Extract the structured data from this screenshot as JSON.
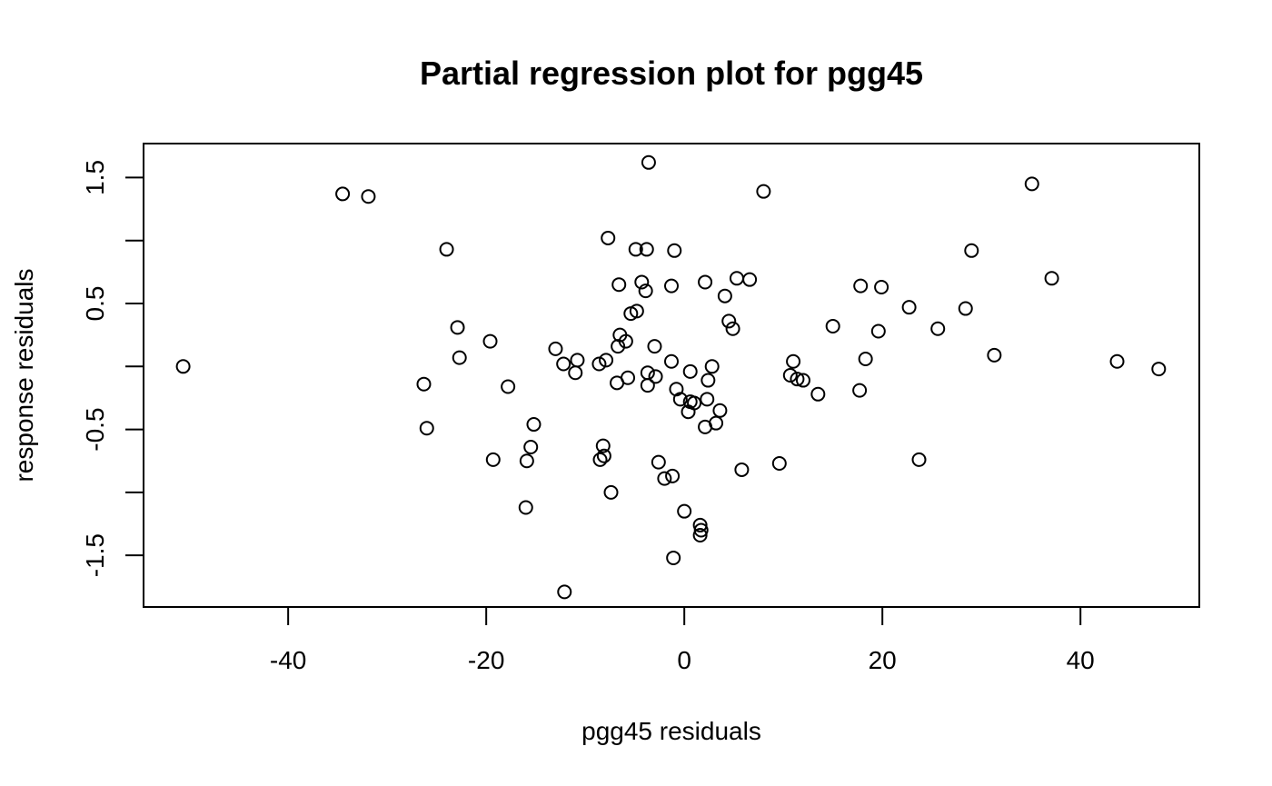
{
  "chart_data": {
    "type": "scatter",
    "title": "Partial regression plot for pgg45",
    "xlabel": "pgg45 residuals",
    "ylabel": "response residuals",
    "xlim": [
      -54.6,
      52.0
    ],
    "ylim": [
      -1.91,
      1.77
    ],
    "xticks": [
      -40,
      -20,
      0,
      20,
      40
    ],
    "xtick_labels": [
      "-40",
      "-20",
      "0",
      "20",
      "40"
    ],
    "yticks": [
      -1.5,
      -1.0,
      -0.5,
      0.0,
      0.5,
      1.0,
      1.5
    ],
    "ytick_labels": [
      "-1.5",
      "",
      "-0.5",
      "",
      "0.5",
      "",
      "1.5"
    ],
    "grid": false,
    "legend": "none",
    "points": [
      {
        "x": -50.6,
        "y": 0.0
      },
      {
        "x": -34.5,
        "y": 1.37
      },
      {
        "x": -31.9,
        "y": 1.35
      },
      {
        "x": -24.0,
        "y": 0.93
      },
      {
        "x": -26.3,
        "y": -0.14
      },
      {
        "x": -26.0,
        "y": -0.49
      },
      {
        "x": -22.9,
        "y": 0.31
      },
      {
        "x": -22.7,
        "y": 0.07
      },
      {
        "x": -19.6,
        "y": 0.2
      },
      {
        "x": -19.3,
        "y": -0.74
      },
      {
        "x": -17.8,
        "y": -0.16
      },
      {
        "x": -16.0,
        "y": -1.12
      },
      {
        "x": -15.9,
        "y": -0.75
      },
      {
        "x": -15.5,
        "y": -0.64
      },
      {
        "x": -15.2,
        "y": -0.46
      },
      {
        "x": -13.0,
        "y": 0.14
      },
      {
        "x": -12.2,
        "y": 0.02
      },
      {
        "x": -12.1,
        "y": -1.79
      },
      {
        "x": -11.0,
        "y": -0.05
      },
      {
        "x": -10.8,
        "y": 0.05
      },
      {
        "x": -8.6,
        "y": 0.02
      },
      {
        "x": -8.5,
        "y": -0.74
      },
      {
        "x": -8.2,
        "y": -0.63
      },
      {
        "x": -8.1,
        "y": -0.71
      },
      {
        "x": -7.9,
        "y": 0.05
      },
      {
        "x": -7.7,
        "y": 1.02
      },
      {
        "x": -7.4,
        "y": -1.0
      },
      {
        "x": -6.8,
        "y": -0.13
      },
      {
        "x": -6.7,
        "y": 0.16
      },
      {
        "x": -6.6,
        "y": 0.65
      },
      {
        "x": -6.5,
        "y": 0.25
      },
      {
        "x": -5.9,
        "y": 0.2
      },
      {
        "x": -5.7,
        "y": -0.09
      },
      {
        "x": -5.4,
        "y": 0.42
      },
      {
        "x": -4.8,
        "y": 0.44
      },
      {
        "x": -4.9,
        "y": 0.93
      },
      {
        "x": -4.3,
        "y": 0.67
      },
      {
        "x": -3.9,
        "y": 0.6
      },
      {
        "x": -3.8,
        "y": 0.93
      },
      {
        "x": -3.7,
        "y": -0.05
      },
      {
        "x": -3.7,
        "y": -0.15
      },
      {
        "x": -3.6,
        "y": 1.62
      },
      {
        "x": -3.0,
        "y": 0.16
      },
      {
        "x": -2.9,
        "y": -0.08
      },
      {
        "x": -2.6,
        "y": -0.76
      },
      {
        "x": -2.0,
        "y": -0.89
      },
      {
        "x": -1.3,
        "y": 0.04
      },
      {
        "x": -1.3,
        "y": 0.64
      },
      {
        "x": -1.2,
        "y": -0.87
      },
      {
        "x": -1.1,
        "y": -1.52
      },
      {
        "x": -1.0,
        "y": 0.92
      },
      {
        "x": -0.8,
        "y": -0.18
      },
      {
        "x": -0.4,
        "y": -0.26
      },
      {
        "x": 0.0,
        "y": -1.15
      },
      {
        "x": 0.4,
        "y": -0.36
      },
      {
        "x": 0.6,
        "y": -0.28
      },
      {
        "x": 0.6,
        "y": -0.04
      },
      {
        "x": 1.0,
        "y": -0.29
      },
      {
        "x": 1.6,
        "y": -1.26
      },
      {
        "x": 1.6,
        "y": -1.34
      },
      {
        "x": 1.7,
        "y": -1.3
      },
      {
        "x": 2.1,
        "y": 0.67
      },
      {
        "x": 2.1,
        "y": -0.48
      },
      {
        "x": 2.3,
        "y": -0.26
      },
      {
        "x": 2.4,
        "y": -0.11
      },
      {
        "x": 2.8,
        "y": 0.0
      },
      {
        "x": 3.2,
        "y": -0.45
      },
      {
        "x": 3.6,
        "y": -0.35
      },
      {
        "x": 4.1,
        "y": 0.56
      },
      {
        "x": 4.5,
        "y": 0.36
      },
      {
        "x": 4.9,
        "y": 0.3
      },
      {
        "x": 5.3,
        "y": 0.7
      },
      {
        "x": 5.8,
        "y": -0.82
      },
      {
        "x": 6.6,
        "y": 0.69
      },
      {
        "x": 8.0,
        "y": 1.39
      },
      {
        "x": 9.6,
        "y": -0.77
      },
      {
        "x": 10.7,
        "y": -0.07
      },
      {
        "x": 11.0,
        "y": 0.04
      },
      {
        "x": 11.4,
        "y": -0.1
      },
      {
        "x": 12.0,
        "y": -0.11
      },
      {
        "x": 13.5,
        "y": -0.22
      },
      {
        "x": 15.0,
        "y": 0.32
      },
      {
        "x": 17.7,
        "y": -0.19
      },
      {
        "x": 17.8,
        "y": 0.64
      },
      {
        "x": 18.3,
        "y": 0.06
      },
      {
        "x": 19.6,
        "y": 0.28
      },
      {
        "x": 19.9,
        "y": 0.63
      },
      {
        "x": 22.7,
        "y": 0.47
      },
      {
        "x": 23.7,
        "y": -0.74
      },
      {
        "x": 25.6,
        "y": 0.3
      },
      {
        "x": 28.4,
        "y": 0.46
      },
      {
        "x": 29.0,
        "y": 0.92
      },
      {
        "x": 31.3,
        "y": 0.09
      },
      {
        "x": 35.1,
        "y": 1.45
      },
      {
        "x": 37.1,
        "y": 0.7
      },
      {
        "x": 43.7,
        "y": 0.04
      },
      {
        "x": 47.9,
        "y": -0.02
      }
    ]
  }
}
